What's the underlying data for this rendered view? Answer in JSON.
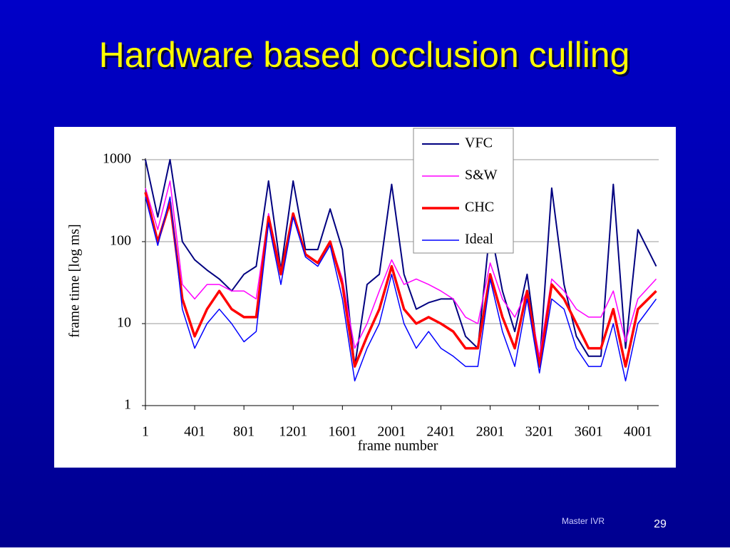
{
  "slide": {
    "title": "Hardware based occlusion culling",
    "footer": "Master IVR",
    "page_number": "29"
  },
  "chart_data": {
    "type": "line",
    "x_label": "frame number",
    "y_label": "frame time [log ms]",
    "log_y": true,
    "grid": true,
    "legend": "upper right",
    "xlim": [
      1,
      4170
    ],
    "ylim": [
      1,
      1000
    ],
    "xticks": [
      1,
      401,
      801,
      1201,
      1601,
      2001,
      2401,
      2801,
      3201,
      3601,
      4001
    ],
    "yticks": [
      1,
      10,
      100,
      1000
    ],
    "x": [
      1,
      101,
      201,
      301,
      401,
      501,
      601,
      701,
      801,
      901,
      1001,
      1101,
      1201,
      1301,
      1401,
      1501,
      1601,
      1701,
      1801,
      1901,
      2001,
      2101,
      2201,
      2301,
      2401,
      2501,
      2601,
      2701,
      2801,
      2901,
      3001,
      3101,
      3201,
      3301,
      3401,
      3501,
      3601,
      3701,
      3801,
      3901,
      4001,
      4150
    ],
    "series": [
      {
        "name": "VFC",
        "color": "#000080",
        "width": 2,
        "values": [
          1000,
          200,
          1000,
          100,
          60,
          45,
          35,
          25,
          40,
          50,
          550,
          45,
          550,
          80,
          80,
          250,
          80,
          3,
          30,
          40,
          500,
          40,
          15,
          18,
          20,
          20,
          7,
          5,
          150,
          25,
          8,
          40,
          3,
          450,
          30,
          7,
          4,
          4,
          500,
          5,
          140,
          50
        ]
      },
      {
        "name": "S&W",
        "color": "#ff00ff",
        "width": 1.5,
        "values": [
          450,
          140,
          550,
          30,
          20,
          30,
          30,
          25,
          25,
          20,
          220,
          45,
          200,
          70,
          55,
          100,
          35,
          5,
          10,
          25,
          60,
          30,
          35,
          30,
          25,
          20,
          12,
          10,
          55,
          20,
          12,
          25,
          4,
          35,
          25,
          15,
          12,
          12,
          25,
          6,
          20,
          35
        ]
      },
      {
        "name": "CHC",
        "color": "#ff0000",
        "width": 3.5,
        "values": [
          400,
          100,
          300,
          20,
          7,
          15,
          25,
          15,
          12,
          12,
          200,
          40,
          220,
          70,
          55,
          100,
          30,
          3,
          7,
          15,
          50,
          15,
          10,
          12,
          10,
          8,
          5,
          5,
          40,
          12,
          5,
          25,
          3,
          30,
          20,
          10,
          5,
          5,
          15,
          3,
          15,
          25
        ]
      },
      {
        "name": "Ideal",
        "color": "#0000ff",
        "width": 1.5,
        "values": [
          350,
          90,
          350,
          15,
          5,
          10,
          15,
          10,
          6,
          8,
          170,
          30,
          200,
          65,
          50,
          90,
          20,
          2,
          5,
          10,
          40,
          10,
          5,
          8,
          5,
          4,
          3,
          3,
          35,
          8,
          3,
          20,
          2.5,
          20,
          15,
          5,
          3,
          3,
          10,
          2,
          10,
          20
        ]
      }
    ]
  }
}
